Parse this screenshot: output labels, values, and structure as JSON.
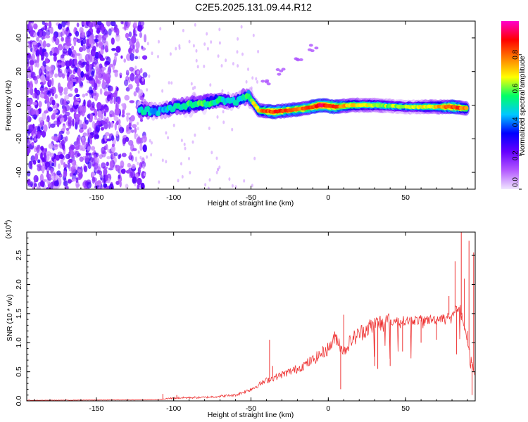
{
  "title": "C2E5.2025.131.09.44.R12",
  "chart_data": [
    {
      "type": "heatmap",
      "xlabel": "Height of straight line (km)",
      "ylabel": "Frequency (Hz)",
      "xlim": [
        -195,
        95
      ],
      "ylim": [
        -50,
        50
      ],
      "x_ticks": [
        -150,
        -100,
        -50,
        0,
        50
      ],
      "y_ticks": [
        -40,
        -20,
        0,
        20,
        40
      ],
      "x_tick_labels": [
        "-150",
        "-100",
        "-50",
        "0",
        "50"
      ],
      "y_tick_labels": [
        "-40",
        "-20",
        "0",
        "20",
        "40"
      ],
      "colorbar": {
        "label": "Normalized spectral amplitude",
        "range": [
          0,
          1
        ],
        "ticks": [
          0.0,
          0.2,
          0.4,
          0.6,
          0.8
        ],
        "tick_labels": [
          "0.0",
          "0.2",
          "0.4",
          "0.6",
          "0.8"
        ],
        "colors": [
          "#f0e6ff",
          "#b45aff",
          "#6600ff",
          "#0000ff",
          "#00c8ff",
          "#00ff66",
          "#ffff00",
          "#ff8000",
          "#ff0000",
          "#ff00cc"
        ]
      },
      "ridge": [
        {
          "x": -122,
          "y": -3,
          "a": 0.5
        },
        {
          "x": -110,
          "y": -4,
          "a": 0.45
        },
        {
          "x": -100,
          "y": -1,
          "a": 0.5
        },
        {
          "x": -90,
          "y": 0,
          "a": 0.55
        },
        {
          "x": -80,
          "y": 1,
          "a": 0.55
        },
        {
          "x": -70,
          "y": 3,
          "a": 0.5
        },
        {
          "x": -60,
          "y": 2,
          "a": 0.45
        },
        {
          "x": -52,
          "y": 6,
          "a": 0.55
        },
        {
          "x": -45,
          "y": -3,
          "a": 0.75
        },
        {
          "x": -35,
          "y": -4,
          "a": 0.85
        },
        {
          "x": -25,
          "y": -3,
          "a": 0.8
        },
        {
          "x": -15,
          "y": -2,
          "a": 0.8
        },
        {
          "x": -5,
          "y": 0,
          "a": 0.9
        },
        {
          "x": 5,
          "y": -1,
          "a": 0.85
        },
        {
          "x": 15,
          "y": 0,
          "a": 0.7
        },
        {
          "x": 30,
          "y": 0,
          "a": 0.65
        },
        {
          "x": 50,
          "y": -1,
          "a": 0.6
        },
        {
          "x": 70,
          "y": -1,
          "a": 0.7
        },
        {
          "x": 80,
          "y": -1,
          "a": 0.85
        },
        {
          "x": 90,
          "y": -2,
          "a": 0.75
        }
      ],
      "faint_branch": [
        {
          "x": -40,
          "y": 14
        },
        {
          "x": -30,
          "y": 20
        },
        {
          "x": -20,
          "y": 26
        },
        {
          "x": -10,
          "y": 34
        }
      ]
    },
    {
      "type": "line",
      "xlabel": "Height of straight line (km)",
      "ylabel": "SNR (10 * v/v)",
      "y_multiplier_label": "(x10",
      "y_multiplier_exp": "4",
      "y_multiplier_close": ")",
      "xlim": [
        -195,
        95
      ],
      "ylim": [
        0,
        2.9
      ],
      "x_ticks": [
        -150,
        -100,
        -50,
        0,
        50
      ],
      "y_ticks": [
        0.0,
        0.5,
        1.0,
        1.5,
        2.0,
        2.5
      ],
      "x_tick_labels": [
        "-150",
        "-100",
        "-50",
        "0",
        "50"
      ],
      "y_tick_labels": [
        "0.0",
        "0.5",
        "1.0",
        "1.5",
        "2.0",
        "2.5"
      ],
      "color": "#ee3333",
      "baseline": [
        {
          "x": -195,
          "y": 0.01
        },
        {
          "x": -110,
          "y": 0.02
        },
        {
          "x": -100,
          "y": 0.05
        },
        {
          "x": -80,
          "y": 0.06
        },
        {
          "x": -60,
          "y": 0.1
        },
        {
          "x": -50,
          "y": 0.2
        },
        {
          "x": -40,
          "y": 0.35
        },
        {
          "x": -30,
          "y": 0.45
        },
        {
          "x": -20,
          "y": 0.55
        },
        {
          "x": -10,
          "y": 0.7
        },
        {
          "x": 0,
          "y": 0.9
        },
        {
          "x": 5,
          "y": 1.1
        },
        {
          "x": 10,
          "y": 0.85
        },
        {
          "x": 15,
          "y": 1.05
        },
        {
          "x": 25,
          "y": 1.25
        },
        {
          "x": 35,
          "y": 1.35
        },
        {
          "x": 50,
          "y": 1.38
        },
        {
          "x": 70,
          "y": 1.4
        },
        {
          "x": 80,
          "y": 1.5
        },
        {
          "x": 85,
          "y": 1.6
        },
        {
          "x": 95,
          "y": 0.4
        }
      ],
      "spikes": [
        {
          "x": -107,
          "y": 0.12
        },
        {
          "x": -98,
          "y": 0.1
        },
        {
          "x": -38,
          "y": 1.05
        },
        {
          "x": -36,
          "y": 0.6
        },
        {
          "x": 10,
          "y": 1.48
        },
        {
          "x": 8,
          "y": 0.2
        },
        {
          "x": 30,
          "y": 0.6
        },
        {
          "x": 32,
          "y": 0.55
        },
        {
          "x": 40,
          "y": 0.6
        },
        {
          "x": 48,
          "y": 0.85
        },
        {
          "x": 60,
          "y": 1.0
        },
        {
          "x": 70,
          "y": 1.05
        },
        {
          "x": 78,
          "y": 1.8
        },
        {
          "x": 82,
          "y": 2.4
        },
        {
          "x": 83,
          "y": 0.8
        },
        {
          "x": 86,
          "y": 2.9
        },
        {
          "x": 88,
          "y": 2.1
        },
        {
          "x": 90,
          "y": 1.2
        },
        {
          "x": 91,
          "y": 2.75
        },
        {
          "x": 93,
          "y": 0.1
        },
        {
          "x": 94,
          "y": 2.55
        }
      ]
    }
  ]
}
